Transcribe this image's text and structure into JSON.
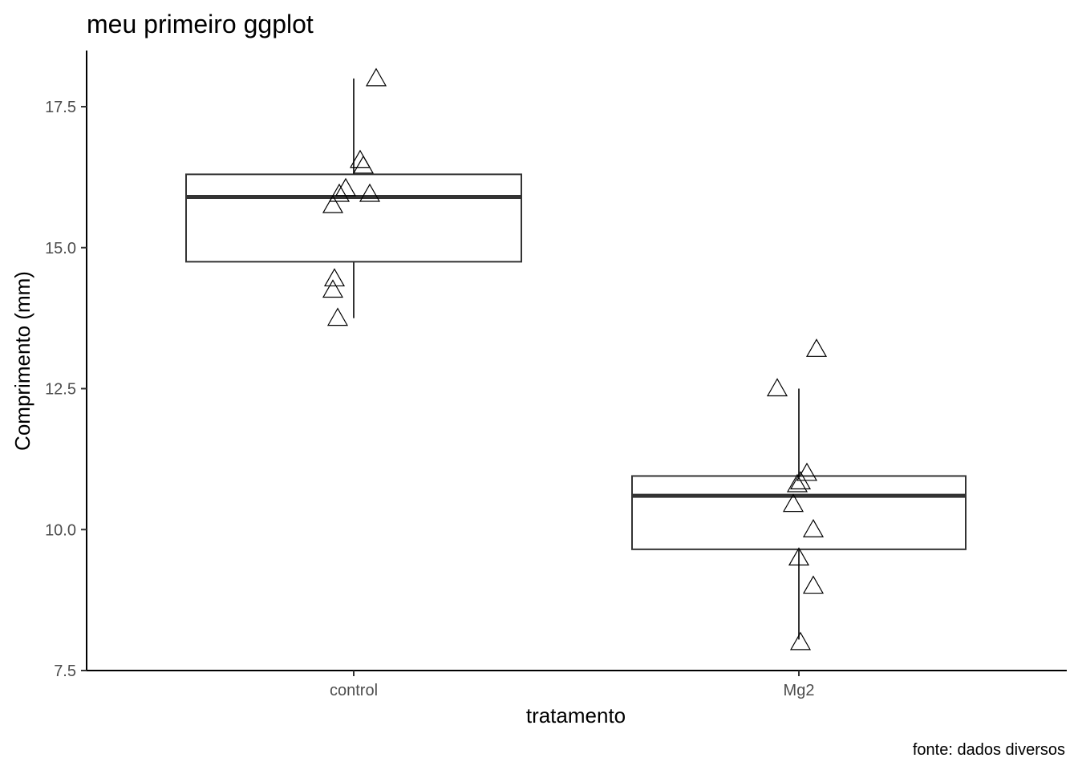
{
  "chart_data": {
    "type": "boxplot",
    "title": "meu primeiro ggplot",
    "xlabel": "tratamento",
    "ylabel": "Comprimento (mm)",
    "caption": "fonte: dados diversos",
    "ylim": [
      7.5,
      18.5
    ],
    "yticks": [
      7.5,
      10.0,
      12.5,
      15.0,
      17.5
    ],
    "ytick_labels": [
      "7.5",
      "10.0",
      "12.5",
      "15.0",
      "17.5"
    ],
    "categories": [
      "control",
      "Mg2"
    ],
    "boxes": [
      {
        "category": "control",
        "whisker_low": 13.75,
        "q1": 14.75,
        "median": 15.9,
        "q3": 16.3,
        "whisker_high": 18.0
      },
      {
        "category": "Mg2",
        "whisker_low": 8.05,
        "q1": 9.65,
        "median": 10.6,
        "q3": 10.95,
        "whisker_high": 12.5
      }
    ],
    "points": [
      {
        "category": "control",
        "value": 18.0
      },
      {
        "category": "control",
        "value": 16.55
      },
      {
        "category": "control",
        "value": 16.45
      },
      {
        "category": "control",
        "value": 16.05
      },
      {
        "category": "control",
        "value": 15.95
      },
      {
        "category": "control",
        "value": 15.95
      },
      {
        "category": "control",
        "value": 15.75
      },
      {
        "category": "control",
        "value": 14.45
      },
      {
        "category": "control",
        "value": 14.25
      },
      {
        "category": "control",
        "value": 13.75
      },
      {
        "category": "Mg2",
        "value": 13.2
      },
      {
        "category": "Mg2",
        "value": 12.5
      },
      {
        "category": "Mg2",
        "value": 11.0
      },
      {
        "category": "Mg2",
        "value": 10.85
      },
      {
        "category": "Mg2",
        "value": 10.8
      },
      {
        "category": "Mg2",
        "value": 10.45
      },
      {
        "category": "Mg2",
        "value": 10.0
      },
      {
        "category": "Mg2",
        "value": 9.5
      },
      {
        "category": "Mg2",
        "value": 9.0
      },
      {
        "category": "Mg2",
        "value": 8.0
      }
    ],
    "point_shape": "open-triangle",
    "grid": false,
    "legend": "none"
  }
}
